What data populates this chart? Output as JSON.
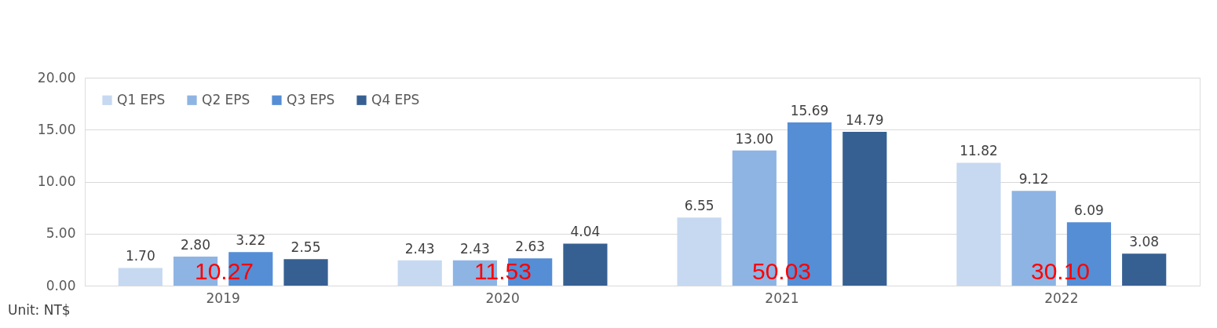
{
  "chart_data": {
    "type": "bar",
    "categories": [
      "2019",
      "2020",
      "2021",
      "2022"
    ],
    "series": [
      {
        "name": "Q1 EPS",
        "color": "#c6d9f1",
        "values": [
          1.7,
          2.43,
          6.55,
          11.82
        ],
        "value_labels": [
          "1.70",
          "2.43",
          "6.55",
          "11.82"
        ]
      },
      {
        "name": "Q2 EPS",
        "color": "#8eb4e3",
        "values": [
          2.8,
          2.43,
          13.0,
          9.12
        ],
        "value_labels": [
          "2.80",
          "2.43",
          "13.00",
          "9.12"
        ]
      },
      {
        "name": "Q3 EPS",
        "color": "#558ed5",
        "values": [
          3.22,
          2.63,
          15.69,
          6.09
        ],
        "value_labels": [
          "3.22",
          "2.63",
          "15.69",
          "6.09"
        ]
      },
      {
        "name": "Q4 EPS",
        "color": "#366092",
        "values": [
          2.55,
          4.04,
          14.79,
          3.08
        ],
        "value_labels": [
          "2.55",
          "4.04",
          "14.79",
          "3.08"
        ]
      }
    ],
    "ylim": [
      0,
      20
    ],
    "yticks": [
      {
        "value": 0,
        "label": "0.00"
      },
      {
        "value": 5,
        "label": "5.00"
      },
      {
        "value": 10,
        "label": "10.00"
      },
      {
        "value": 15,
        "label": "15.00"
      },
      {
        "value": 20,
        "label": "20.00"
      }
    ],
    "grid": "y",
    "legend": "top left",
    "annotations": [
      "10.27",
      "11.53",
      "50.03",
      "30.10",
      "Unit: NT$"
    ]
  }
}
